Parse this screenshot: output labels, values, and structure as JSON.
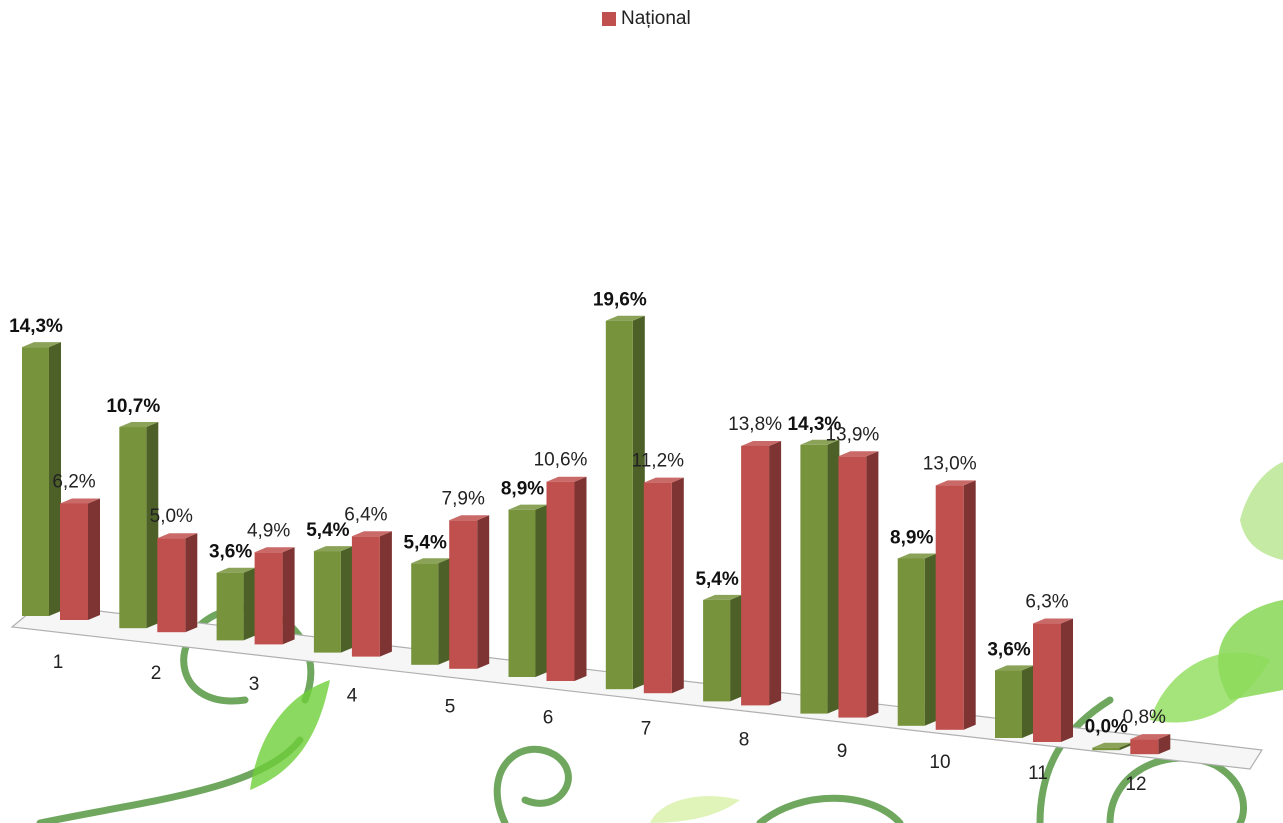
{
  "chart_data": {
    "type": "bar",
    "categories": [
      "1",
      "2",
      "3",
      "4",
      "5",
      "6",
      "7",
      "8",
      "9",
      "10",
      "11",
      "12"
    ],
    "series": [
      {
        "values": [
          14.3,
          10.7,
          3.6,
          5.4,
          5.4,
          8.9,
          19.6,
          5.4,
          14.3,
          8.9,
          3.6,
          0.0
        ],
        "labels": [
          "14,3%",
          "10,7%",
          "3,6%",
          "5,4%",
          "5,4%",
          "8,9%",
          "19,6%",
          "5,4%",
          "14,3%",
          "8,9%",
          "3,6%",
          "0,0%"
        ],
        "color": "#77933c"
      },
      {
        "name": "Național",
        "values": [
          6.2,
          5.0,
          4.9,
          6.4,
          7.9,
          10.6,
          11.2,
          13.8,
          13.9,
          13.0,
          6.3,
          0.8
        ],
        "labels": [
          "6,2%",
          "5,0%",
          "4,9%",
          "6,4%",
          "7,9%",
          "10,6%",
          "11,2%",
          "13,8%",
          "13,9%",
          "13,0%",
          "6,3%",
          "0,8%"
        ],
        "color": "#c0504d"
      }
    ],
    "legend_position": "top",
    "ylim": [
      0,
      20
    ],
    "grid": false
  }
}
